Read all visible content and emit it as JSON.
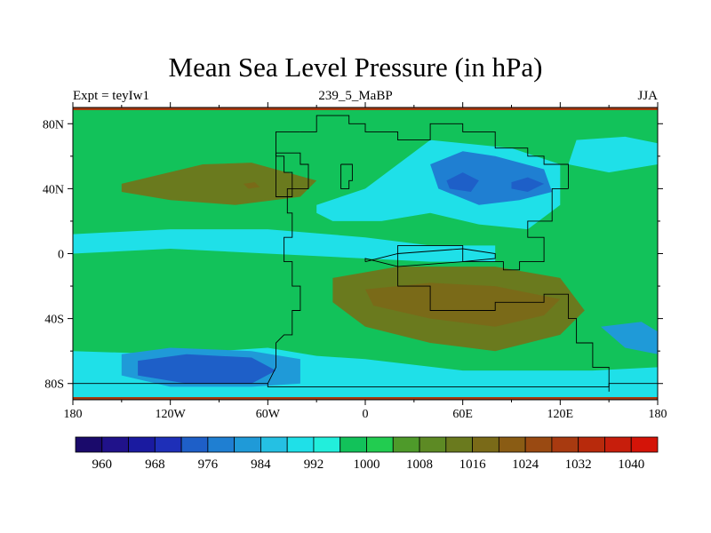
{
  "chart_data": {
    "type": "contour-map",
    "title": "Mean Sea Level Pressure (in hPa)",
    "left_label": "Expt = teyIw1",
    "center_label": "239_5_MaBP",
    "right_label": "JJA",
    "x_ticks": [
      "180",
      "120W",
      "60W",
      "0",
      "60E",
      "120E",
      "180"
    ],
    "x_tick_values": [
      -180,
      -120,
      -60,
      0,
      60,
      120,
      180
    ],
    "y_ticks": [
      "80N",
      "40N",
      "0",
      "40S",
      "80S"
    ],
    "y_tick_values": [
      80,
      40,
      0,
      -40,
      -80
    ],
    "lon_range": [
      -180,
      180
    ],
    "lat_range": [
      -90,
      90
    ],
    "colorbar_labels": [
      "960",
      "968",
      "976",
      "984",
      "992",
      "1000",
      "1008",
      "1016",
      "1024",
      "1032",
      "1040"
    ],
    "colorbar_colors": [
      "#1a0a6b",
      "#20128a",
      "#1a1aa0",
      "#1e2fb8",
      "#1e5fc8",
      "#1f7fd2",
      "#1f9ad8",
      "#25c0e3",
      "#1fe0e8",
      "#22eedc",
      "#12c25a",
      "#22cc50",
      "#4e9a2a",
      "#5d8a24",
      "#6a7a1e",
      "#7a6a18",
      "#8a5c14",
      "#9a4a12",
      "#a83a10",
      "#b82a0c",
      "#c71e0c",
      "#d41408"
    ],
    "fills": [
      {
        "name": "high-north-atlantic",
        "color": "#6a7a1e",
        "lon": [
          -150,
          -100,
          -70,
          -30,
          -40,
          -80,
          -120,
          -150
        ],
        "lat": [
          43,
          55,
          56,
          45,
          35,
          30,
          33,
          38
        ]
      },
      {
        "name": "high-north-atlantic-core",
        "color": "#7a6a18",
        "lon": [
          -75,
          -68,
          -65,
          -72
        ],
        "lat": [
          43,
          44,
          41,
          40
        ]
      },
      {
        "name": "low-tropical-atlantic-band",
        "color": "#1fe0e8",
        "lon": [
          -180,
          -120,
          -60,
          0,
          40,
          80,
          80,
          40,
          0,
          -60,
          -120,
          -180
        ],
        "lat": [
          12,
          15,
          15,
          10,
          5,
          5,
          -5,
          -5,
          -3,
          0,
          3,
          0
        ]
      },
      {
        "name": "low-tethys-region",
        "color": "#1fe0e8",
        "lon": [
          -30,
          0,
          40,
          90,
          120,
          120,
          100,
          70,
          40,
          10,
          -20,
          -30
        ],
        "lat": [
          30,
          40,
          70,
          65,
          55,
          30,
          15,
          18,
          25,
          20,
          20,
          25
        ]
      },
      {
        "name": "low-asian",
        "color": "#1f7fd2",
        "lon": [
          40,
          60,
          80,
          110,
          115,
          95,
          70,
          45
        ],
        "lat": [
          55,
          63,
          60,
          52,
          38,
          33,
          30,
          40
        ]
      },
      {
        "name": "low-asian-core",
        "color": "#1e5fc8",
        "lon": [
          50,
          60,
          70,
          65,
          52
        ],
        "lat": [
          45,
          50,
          45,
          38,
          40
        ]
      },
      {
        "name": "low-asian-core-2",
        "color": "#1e5fc8",
        "lon": [
          90,
          100,
          110,
          100,
          90
        ],
        "lat": [
          44,
          47,
          43,
          38,
          40
        ]
      },
      {
        "name": "low-northwest-pacific",
        "color": "#1fe0e8",
        "lon": [
          130,
          160,
          180,
          180,
          150,
          125
        ],
        "lat": [
          70,
          72,
          68,
          55,
          50,
          55
        ]
      },
      {
        "name": "high-south-tethys",
        "color": "#6a7a1e",
        "lon": [
          -20,
          20,
          80,
          120,
          135,
          120,
          80,
          40,
          0,
          -20
        ],
        "lat": [
          -15,
          -8,
          -8,
          -15,
          -35,
          -50,
          -60,
          -55,
          -45,
          -30
        ]
      },
      {
        "name": "high-south-tethys-core",
        "color": "#7a6a18",
        "lon": [
          0,
          40,
          80,
          120,
          110,
          80,
          40,
          5
        ],
        "lat": [
          -22,
          -18,
          -20,
          -28,
          -38,
          -45,
          -40,
          -32
        ]
      },
      {
        "name": "low-south-pacific",
        "color": "#1fe0e8",
        "lon": [
          -180,
          -120,
          -60,
          -30,
          0,
          60,
          140,
          180,
          180,
          -180
        ],
        "lat": [
          -60,
          -62,
          -58,
          -63,
          -65,
          -72,
          -72,
          -70,
          -90,
          -90
        ]
      },
      {
        "name": "low-south-pacific-deep",
        "color": "#1f9ad8",
        "lon": [
          -150,
          -120,
          -70,
          -40,
          -40,
          -70,
          -120,
          -150
        ],
        "lat": [
          -62,
          -58,
          -60,
          -65,
          -80,
          -82,
          -82,
          -75
        ]
      },
      {
        "name": "low-south-pacific-core",
        "color": "#1e5fc8",
        "lon": [
          -140,
          -110,
          -70,
          -55,
          -70,
          -110,
          -140
        ],
        "lat": [
          -66,
          -62,
          -64,
          -72,
          -80,
          -80,
          -75
        ]
      },
      {
        "name": "low-east-pacific",
        "color": "#1f9ad8",
        "lon": [
          145,
          170,
          180,
          180,
          160
        ],
        "lat": [
          -45,
          -42,
          -48,
          -62,
          -58
        ]
      }
    ],
    "coastlines": [
      {
        "name": "pangea-west-coast",
        "lon": [
          -40,
          -55,
          -55,
          -50,
          -50,
          -45,
          -45,
          -48,
          -48,
          -45,
          -45,
          -50,
          -50,
          -45,
          -45,
          -40,
          -40,
          -45,
          -45,
          -50,
          -55,
          -55,
          -60
        ],
        "lat": [
          75,
          75,
          60,
          60,
          50,
          50,
          40,
          40,
          25,
          25,
          10,
          10,
          -5,
          -5,
          -20,
          -20,
          -35,
          -35,
          -50,
          -50,
          -55,
          -70,
          -80
        ]
      },
      {
        "name": "pangea-north-coast",
        "lon": [
          -40,
          -30,
          -30,
          -10,
          -10,
          0,
          0,
          20,
          20,
          40,
          40,
          60,
          60,
          80,
          80,
          100,
          100,
          110,
          110,
          125,
          125
        ],
        "lat": [
          75,
          75,
          85,
          85,
          80,
          80,
          75,
          75,
          70,
          70,
          80,
          80,
          75,
          75,
          65,
          65,
          60,
          60,
          55,
          55,
          40
        ]
      },
      {
        "name": "pangea-east-coast",
        "lon": [
          125,
          115,
          115,
          100,
          100,
          110,
          110,
          95,
          95,
          85,
          85,
          60,
          60,
          20,
          20,
          40,
          40,
          80,
          80,
          110,
          110,
          125,
          125,
          130,
          130,
          140,
          140,
          150,
          150
        ],
        "lat": [
          40,
          40,
          20,
          20,
          10,
          10,
          -5,
          -5,
          -10,
          -10,
          -5,
          -5,
          5,
          5,
          -20,
          -20,
          -35,
          -35,
          -30,
          -30,
          -25,
          -25,
          -40,
          -40,
          -55,
          -55,
          -70,
          -70,
          -85
        ]
      },
      {
        "name": "tethys-inner-coast",
        "lon": [
          0,
          20,
          60,
          80,
          80,
          60,
          20,
          0,
          0
        ],
        "lat": [
          -5,
          0,
          3,
          0,
          -3,
          -5,
          -8,
          -3,
          -5
        ]
      },
      {
        "name": "south-coast",
        "lon": [
          -180,
          -60,
          -60,
          150,
          150,
          180
        ],
        "lat": [
          -80,
          -80,
          -82,
          -82,
          -80,
          -80
        ]
      },
      {
        "name": "island-north-atlantic",
        "lon": [
          -15,
          -8,
          -8,
          -10,
          -10,
          -15,
          -15
        ],
        "lat": [
          55,
          55,
          45,
          45,
          40,
          40,
          55
        ]
      },
      {
        "name": "greenland-block",
        "lon": [
          -55,
          -40,
          -40,
          -35,
          -35,
          -45,
          -45,
          -55,
          -55
        ],
        "lat": [
          62,
          62,
          55,
          55,
          40,
          40,
          35,
          35,
          62
        ]
      }
    ]
  }
}
